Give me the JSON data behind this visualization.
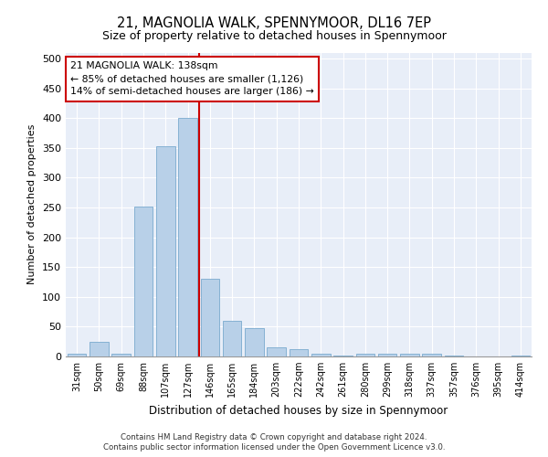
{
  "title": "21, MAGNOLIA WALK, SPENNYMOOR, DL16 7EP",
  "subtitle": "Size of property relative to detached houses in Spennymoor",
  "xlabel": "Distribution of detached houses by size in Spennymoor",
  "ylabel": "Number of detached properties",
  "categories": [
    "31sqm",
    "50sqm",
    "69sqm",
    "88sqm",
    "107sqm",
    "127sqm",
    "146sqm",
    "165sqm",
    "184sqm",
    "203sqm",
    "222sqm",
    "242sqm",
    "261sqm",
    "280sqm",
    "299sqm",
    "318sqm",
    "337sqm",
    "357sqm",
    "376sqm",
    "395sqm",
    "414sqm"
  ],
  "values": [
    5,
    25,
    5,
    252,
    353,
    400,
    130,
    60,
    48,
    16,
    13,
    5,
    2,
    5,
    5,
    4,
    4,
    1,
    0,
    0,
    2
  ],
  "bar_color": "#b8d0e8",
  "bar_edge_color": "#7aaace",
  "vline_color": "#cc0000",
  "annotation_text": "21 MAGNOLIA WALK: 138sqm\n← 85% of detached houses are smaller (1,126)\n14% of semi-detached houses are larger (186) →",
  "annotation_box_color": "#ffffff",
  "annotation_box_edge_color": "#cc0000",
  "ylim": [
    0,
    510
  ],
  "yticks": [
    0,
    50,
    100,
    150,
    200,
    250,
    300,
    350,
    400,
    450,
    500
  ],
  "background_color": "#e8eef8",
  "footer_line1": "Contains HM Land Registry data © Crown copyright and database right 2024.",
  "footer_line2": "Contains public sector information licensed under the Open Government Licence v3.0."
}
